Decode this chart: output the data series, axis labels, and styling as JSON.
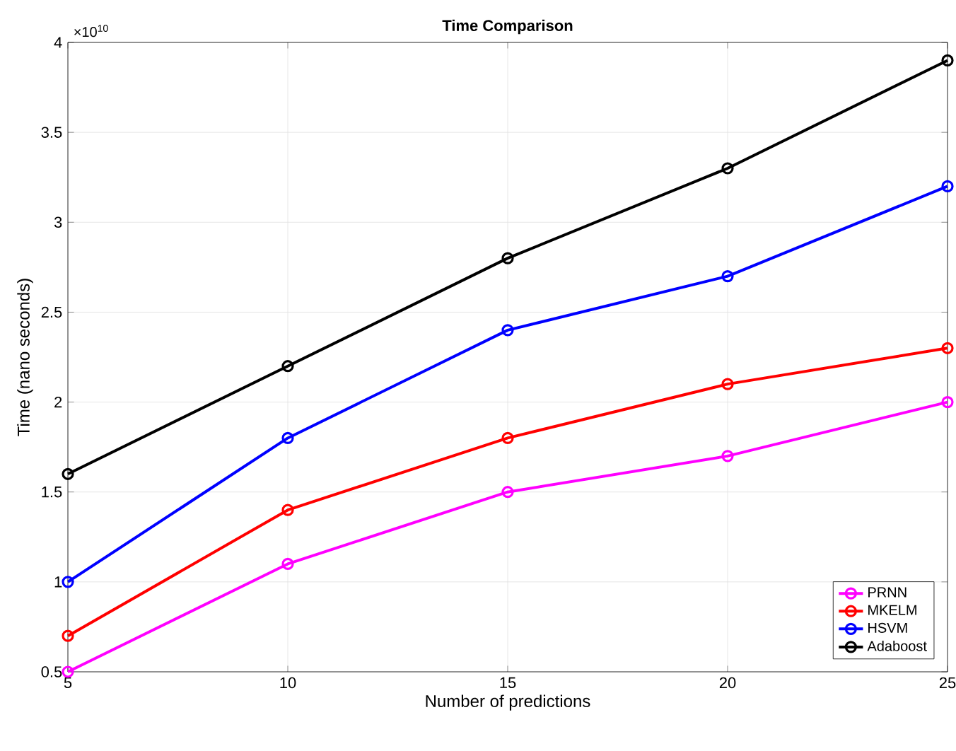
{
  "chart_data": {
    "type": "line",
    "title": "Time Comparison",
    "xlabel": "Number of predictions",
    "ylabel": "Time (nano seconds)",
    "x": [
      5,
      10,
      15,
      20,
      25
    ],
    "series": [
      {
        "name": "PRNN",
        "color": "#ff00ff",
        "values": [
          0.5,
          1.1,
          1.5,
          1.7,
          2.0
        ]
      },
      {
        "name": "MKELM",
        "color": "#ff0000",
        "values": [
          0.7,
          1.4,
          1.8,
          2.1,
          2.3
        ]
      },
      {
        "name": "HSVM",
        "color": "#0000ff",
        "values": [
          1.0,
          1.8,
          2.4,
          2.7,
          3.2
        ]
      },
      {
        "name": "Adaboost",
        "color": "#000000",
        "values": [
          1.6,
          2.2,
          2.8,
          3.3,
          3.9
        ]
      }
    ],
    "xlim": [
      5,
      25
    ],
    "xticks": [
      5,
      10,
      15,
      20,
      25
    ],
    "ylim": [
      0.5,
      4
    ],
    "yticks": [
      0.5,
      1,
      1.5,
      2,
      2.5,
      3,
      3.5,
      4
    ],
    "annotations": [
      "×10$^{10}$"
    ],
    "grid": true,
    "legend": "bottom right",
    "marker": "circle",
    "line_style": "solid"
  }
}
